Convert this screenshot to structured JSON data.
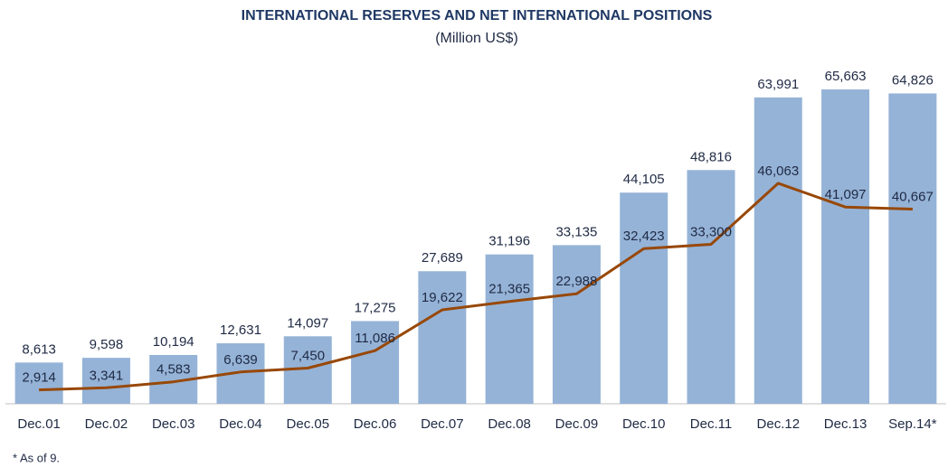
{
  "chart_data": {
    "type": "bar",
    "title": "INTERNATIONAL RESERVES AND NET INTERNATIONAL POSITIONS",
    "subtitle": "(Million US$)",
    "footnote": "* As of 9.",
    "categories": [
      "Dec.01",
      "Dec.02",
      "Dec.03",
      "Dec.04",
      "Dec.05",
      "Dec.06",
      "Dec.07",
      "Dec.08",
      "Dec.09",
      "Dec.10",
      "Dec.11",
      "Dec.12",
      "Dec.13",
      "Sep.14*"
    ],
    "series": [
      {
        "type": "bar",
        "color": "#95b3d7",
        "values": [
          8613,
          9598,
          10194,
          12631,
          14097,
          17275,
          27689,
          31196,
          33135,
          44105,
          48816,
          63991,
          65663,
          64826
        ],
        "value_labels": [
          "8,613",
          "9,598",
          "10,194",
          "12,631",
          "14,097",
          "17,275",
          "27,689",
          "31,196",
          "33,135",
          "44,105",
          "48,816",
          "63,991",
          "65,663",
          "64,826"
        ]
      },
      {
        "type": "line",
        "color": "#984807",
        "values": [
          2914,
          3341,
          4583,
          6639,
          7450,
          11086,
          19622,
          21365,
          22988,
          32423,
          33300,
          46063,
          41097,
          40667
        ],
        "value_labels": [
          "2,914",
          "3,341",
          "4,583",
          "6,639",
          "7,450",
          "11,086",
          "19,622",
          "21,365",
          "22,988",
          "32,423",
          "33,300",
          "46,063",
          "41,097",
          "40,667"
        ]
      }
    ]
  }
}
